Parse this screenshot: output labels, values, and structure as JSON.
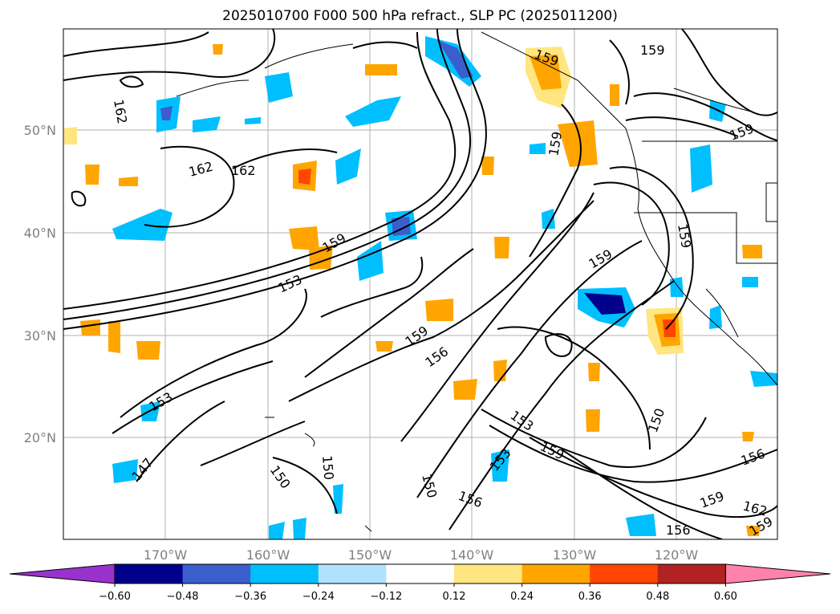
{
  "title": "2025010700 F000 500 hPa refract., SLP PC (2025011200)",
  "lat_labels": [
    "50°N",
    "40°N",
    "30°N",
    "20°N"
  ],
  "lon_labels": [
    "170°W",
    "160°W",
    "150°W",
    "140°W",
    "130°W",
    "120°W"
  ],
  "colorbar": {
    "ticks": [
      "−0.60",
      "−0.48",
      "−0.36",
      "−0.24",
      "−0.12",
      "0.12",
      "0.24",
      "0.36",
      "0.48",
      "0.60"
    ],
    "colors": [
      "#9932cc",
      "#00008b",
      "#3a5fcd",
      "#00bfff",
      "#b0e2ff",
      "#ffffff",
      "#ffe680",
      "#ffa500",
      "#ff4500",
      "#b22222",
      "#ff82ab"
    ]
  },
  "contour_labels": [
    "162",
    "162",
    "162",
    "159",
    "153",
    "159",
    "156",
    "159",
    "159",
    "153",
    "147",
    "150",
    "150",
    "150",
    "156",
    "153",
    "159",
    "153",
    "150",
    "156",
    "159",
    "162",
    "159",
    "156",
    "159",
    "159"
  ]
}
